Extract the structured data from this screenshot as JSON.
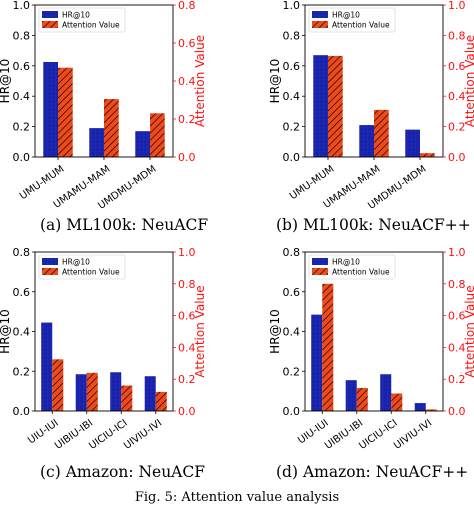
{
  "figure_caption": "Fig. 5: Attention value analysis",
  "colors": {
    "hr": "#1f2bc7",
    "attention": "#ee4a1c",
    "right_axis": "#ff1111",
    "hatch": "#000000"
  },
  "chart_data": [
    {
      "type": "bar",
      "caption": "(a) ML100k: NeuACF",
      "categories": [
        "UMU-MUM",
        "UMAMU-MAM",
        "UMDMU-MDM"
      ],
      "series": [
        {
          "name": "HR@10",
          "axis": "left",
          "values": [
            0.625,
            0.19,
            0.17
          ]
        },
        {
          "name": "Attention Value",
          "axis": "right",
          "values": [
            0.47,
            0.305,
            0.23
          ]
        }
      ],
      "ylabel": "HR@10",
      "ylabel_right": "Attention Value",
      "ylim": [
        0,
        1.0
      ],
      "ylim_right": [
        0,
        0.8
      ],
      "yticks": [
        "0.0",
        "0.2",
        "0.4",
        "0.6",
        "0.8",
        "1.0"
      ],
      "yticks_right": [
        "0.0",
        "0.2",
        "0.4",
        "0.6",
        "0.8"
      ],
      "legend": "top-left",
      "grid": false
    },
    {
      "type": "bar",
      "caption": "(b) ML100k: NeuACF++",
      "categories": [
        "UMU-MUM",
        "UMAMU-MAM",
        "UMDMU-MDM"
      ],
      "series": [
        {
          "name": "HR@10",
          "axis": "left",
          "values": [
            0.67,
            0.21,
            0.18
          ]
        },
        {
          "name": "Attention Value",
          "axis": "right",
          "values": [
            0.665,
            0.31,
            0.025
          ]
        }
      ],
      "ylabel": "HR@10",
      "ylabel_right": "Attention Value",
      "ylim": [
        0,
        1.0
      ],
      "ylim_right": [
        0,
        1.0
      ],
      "yticks": [
        "0.0",
        "0.2",
        "0.4",
        "0.6",
        "0.8",
        "1.0"
      ],
      "yticks_right": [
        "0.0",
        "0.2",
        "0.4",
        "0.6",
        "0.8",
        "1.0"
      ],
      "legend": "top-left",
      "grid": false
    },
    {
      "type": "bar",
      "caption": "(c) Amazon: NeuACF",
      "categories": [
        "UIU-IUI",
        "UIBIU-IBI",
        "UICIU-ICI",
        "UIVIU-IVI"
      ],
      "series": [
        {
          "name": "HR@10",
          "axis": "left",
          "values": [
            0.445,
            0.185,
            0.195,
            0.175
          ]
        },
        {
          "name": "Attention Value",
          "axis": "right",
          "values": [
            0.325,
            0.24,
            0.16,
            0.12
          ]
        }
      ],
      "ylabel": "HR@10",
      "ylabel_right": "Attention Value",
      "ylim": [
        0,
        0.8
      ],
      "ylim_right": [
        0,
        1.0
      ],
      "yticks": [
        "0.0",
        "0.2",
        "0.4",
        "0.6",
        "0.8"
      ],
      "yticks_right": [
        "0.0",
        "0.2",
        "0.4",
        "0.6",
        "0.8",
        "1.0"
      ],
      "legend": "top-left",
      "grid": false
    },
    {
      "type": "bar",
      "caption": "(d) Amazon: NeuACF++",
      "categories": [
        "UIU-IUI",
        "UIBIU-IBI",
        "UICIU-ICI",
        "UIVIU-IVI"
      ],
      "series": [
        {
          "name": "HR@10",
          "axis": "left",
          "values": [
            0.485,
            0.155,
            0.185,
            0.04
          ]
        },
        {
          "name": "Attention Value",
          "axis": "right",
          "values": [
            0.8,
            0.145,
            0.11,
            0.01
          ]
        }
      ],
      "ylabel": "HR@10",
      "ylabel_right": "Attention Value",
      "ylim": [
        0,
        0.8
      ],
      "ylim_right": [
        0,
        1.0
      ],
      "yticks": [
        "0.0",
        "0.2",
        "0.4",
        "0.6",
        "0.8"
      ],
      "yticks_right": [
        "0.0",
        "0.2",
        "0.4",
        "0.6",
        "0.8",
        "1.0"
      ],
      "legend": "top-left",
      "grid": false
    }
  ]
}
